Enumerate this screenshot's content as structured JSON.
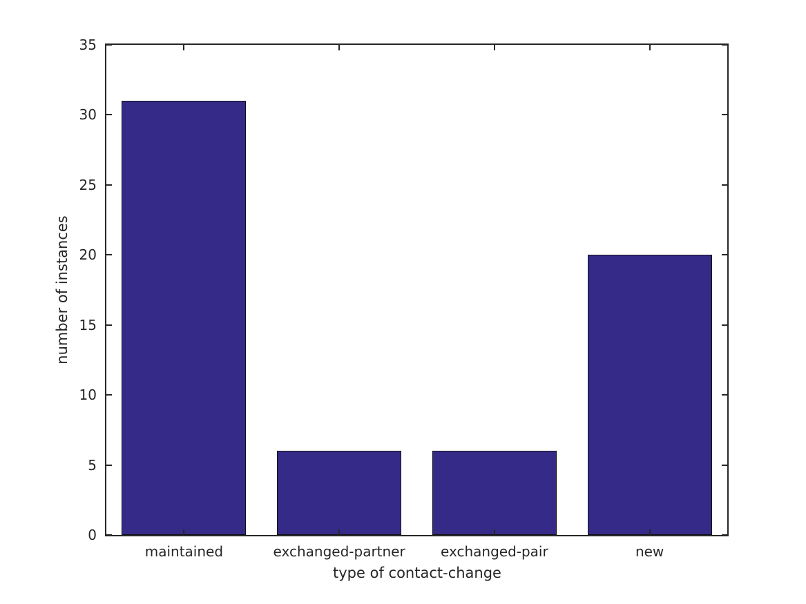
{
  "chart_data": {
    "type": "bar",
    "categories": [
      "maintained",
      "exchanged-partner",
      "exchanged-pair",
      "new"
    ],
    "values": [
      31,
      6,
      6,
      20
    ],
    "title": "",
    "xlabel": "type of contact-change",
    "ylabel": "number of instances",
    "ylim": [
      0,
      35
    ],
    "yticks": [
      0,
      5,
      10,
      15,
      20,
      25,
      30,
      35
    ],
    "bar_width_fraction": 0.8,
    "grid": false,
    "legend": "none",
    "colors": {
      "bar_fill": "#352a87",
      "bar_edge": "#111111",
      "axis": "#262626",
      "text": "#262626",
      "background": "#ffffff"
    }
  }
}
